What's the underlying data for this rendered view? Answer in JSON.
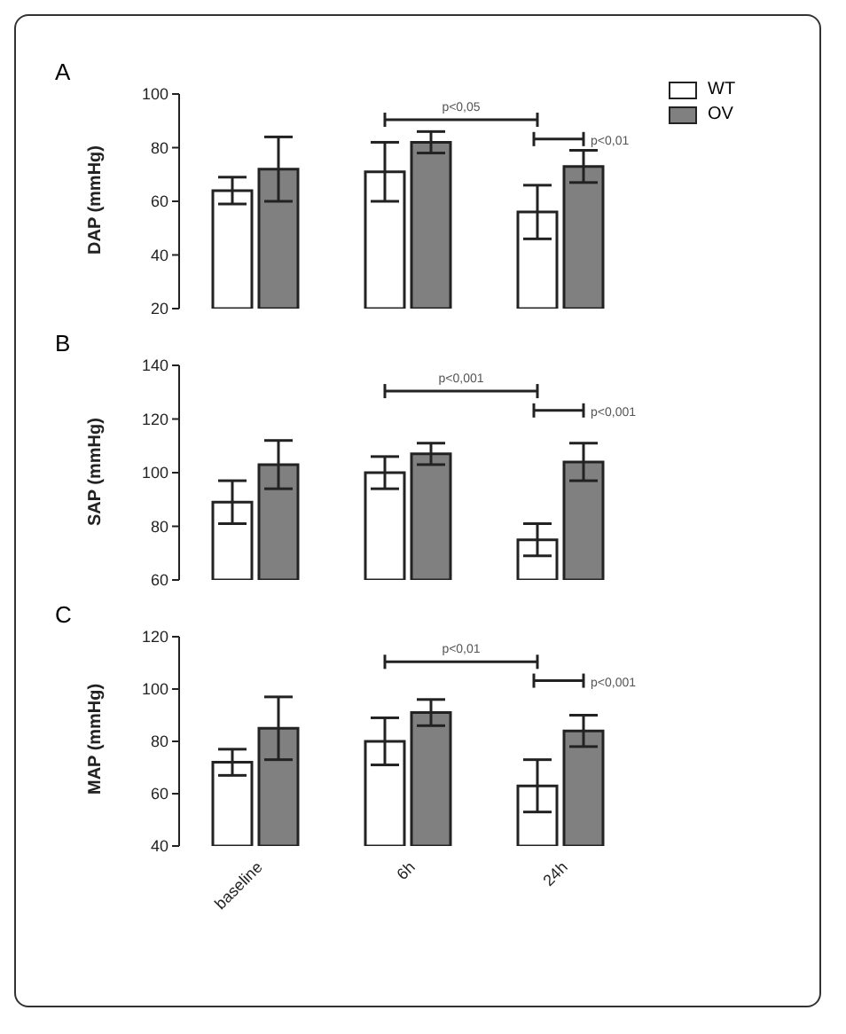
{
  "chart_data": [
    {
      "type": "bar",
      "title": "A",
      "ylabel": "DAP (mmHg)",
      "categories": [
        null,
        null,
        null
      ],
      "ylim": [
        20,
        100
      ],
      "yticks": [
        20,
        40,
        60,
        80,
        100
      ],
      "legend": "top right",
      "tick_labels": "y",
      "series": [
        {
          "name": "WT",
          "color": "#ffffff",
          "values": [
            64,
            71,
            56
          ],
          "errors": [
            5,
            11,
            10
          ]
        },
        {
          "name": "OV",
          "color": "#808080",
          "values": [
            72,
            82,
            73
          ],
          "errors": [
            12,
            4,
            6
          ]
        }
      ],
      "annotations": [
        "p<0,05",
        "p<0,01"
      ]
    },
    {
      "type": "bar",
      "title": "B",
      "ylabel": "SAP (mmHg)",
      "categories": [
        null,
        null,
        null
      ],
      "ylim": [
        60,
        140
      ],
      "yticks": [
        60,
        80,
        100,
        120,
        140
      ],
      "tick_labels": "y",
      "series": [
        {
          "color": "#ffffff",
          "values": [
            89,
            100,
            75
          ],
          "errors": [
            8,
            6,
            6
          ]
        },
        {
          "color": "#808080",
          "values": [
            103,
            107,
            104
          ],
          "errors": [
            9,
            4,
            7
          ]
        }
      ],
      "annotations": [
        "p<0,001",
        "p<0,001"
      ]
    },
    {
      "type": "bar",
      "title": "C",
      "ylabel": "MAP (mmHg)",
      "categories": [
        "baseline",
        "6h",
        "24h"
      ],
      "ylim": [
        40,
        120
      ],
      "yticks": [
        40,
        60,
        80,
        100,
        120
      ],
      "series": [
        {
          "color": "#ffffff",
          "values": [
            72,
            80,
            63
          ],
          "errors": [
            5,
            9,
            10
          ]
        },
        {
          "color": "#808080",
          "values": [
            85,
            91,
            84
          ],
          "errors": [
            12,
            5,
            6
          ]
        }
      ],
      "annotations": [
        "p<0,01",
        "p<0,001"
      ]
    }
  ]
}
